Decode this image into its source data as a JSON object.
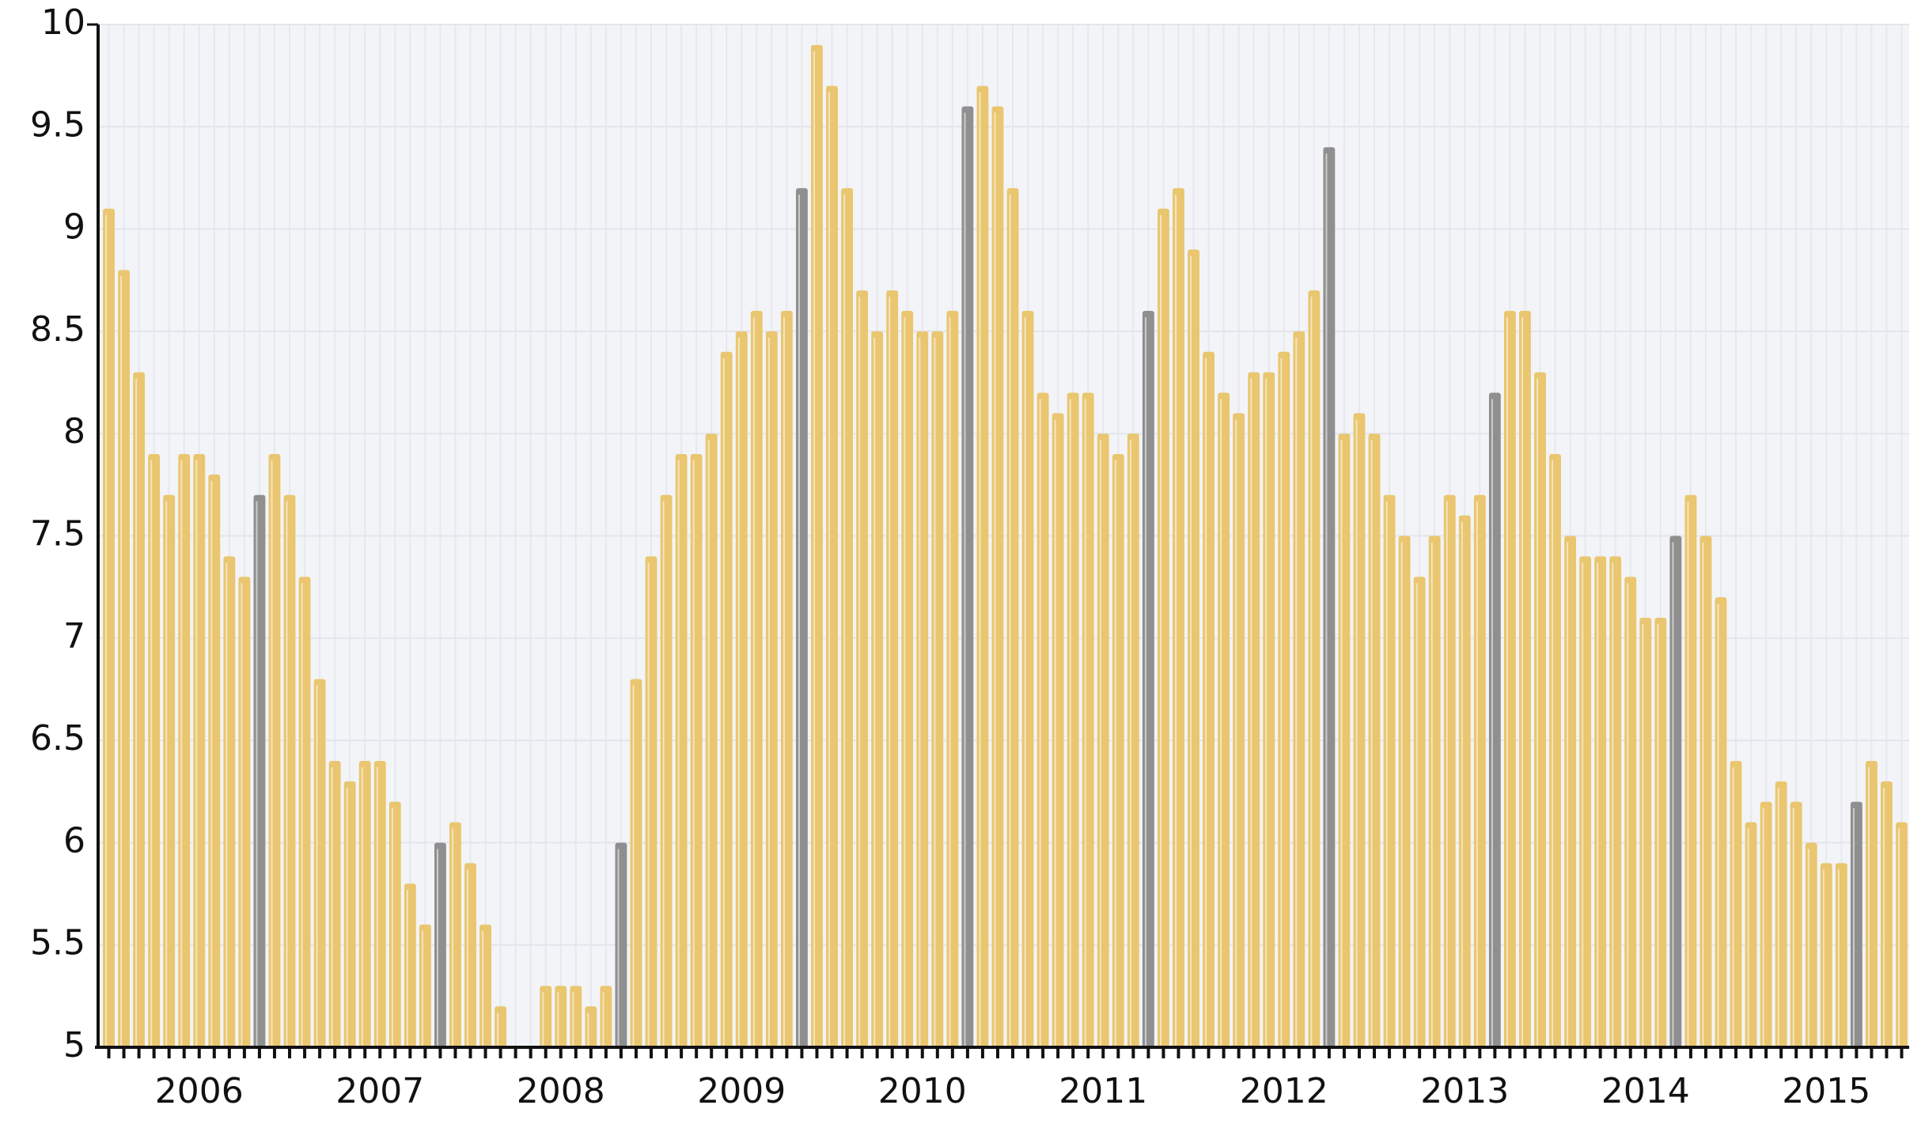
{
  "chart_data": {
    "type": "bar",
    "categories": [
      null,
      null,
      null,
      null,
      null,
      null,
      "2006",
      null,
      null,
      null,
      null,
      null,
      null,
      null,
      null,
      null,
      null,
      null,
      "2007",
      null,
      null,
      null,
      null,
      null,
      null,
      null,
      null,
      null,
      null,
      null,
      "2008",
      null,
      null,
      null,
      null,
      null,
      null,
      null,
      null,
      null,
      null,
      null,
      "2009",
      null,
      null,
      null,
      null,
      null,
      null,
      null,
      null,
      null,
      null,
      null,
      "2010",
      null,
      null,
      null,
      null,
      null,
      null,
      null,
      null,
      null,
      null,
      null,
      "2011",
      null,
      null,
      null,
      null,
      null,
      null,
      null,
      null,
      null,
      null,
      null,
      "2012",
      null,
      null,
      null,
      null,
      null,
      null,
      null,
      null,
      null,
      null,
      null,
      "2013",
      null,
      null,
      null,
      null,
      null,
      null,
      null,
      null,
      null,
      null,
      null,
      "2014",
      null,
      null,
      null,
      null,
      null,
      null,
      null,
      null,
      null,
      null,
      null,
      "2015",
      null,
      null,
      null,
      null,
      null
    ],
    "values": [
      9.1,
      8.8,
      8.3,
      7.9,
      7.7,
      7.9,
      7.9,
      7.8,
      7.4,
      7.3,
      7.7,
      7.9,
      7.7,
      7.3,
      6.8,
      6.4,
      6.3,
      6.4,
      6.4,
      6.2,
      5.8,
      5.6,
      6.0,
      6.1,
      5.9,
      5.6,
      5.2,
      null,
      null,
      5.3,
      5.3,
      5.3,
      5.2,
      5.3,
      6.0,
      6.8,
      7.4,
      7.7,
      7.9,
      7.9,
      8.0,
      8.4,
      8.5,
      8.6,
      8.5,
      8.6,
      9.2,
      9.9,
      9.7,
      9.2,
      8.7,
      8.5,
      8.7,
      8.6,
      8.5,
      8.5,
      8.6,
      9.6,
      9.7,
      9.6,
      9.2,
      8.6,
      8.2,
      8.1,
      8.2,
      8.2,
      8.0,
      7.9,
      8.0,
      8.6,
      9.1,
      9.2,
      8.9,
      8.4,
      8.2,
      8.1,
      8.3,
      8.3,
      8.4,
      8.5,
      8.7,
      9.4,
      8.0,
      8.1,
      8.0,
      7.7,
      7.5,
      7.3,
      7.5,
      7.7,
      7.6,
      7.7,
      8.2,
      8.6,
      8.6,
      8.3,
      7.9,
      7.5,
      7.4,
      7.4,
      7.4,
      7.3,
      7.1,
      7.1,
      7.5,
      7.7,
      7.5,
      7.2,
      6.4,
      6.1,
      6.2,
      6.3,
      6.2,
      6.0,
      5.9,
      5.9,
      6.2,
      6.4,
      6.3,
      6.1
    ],
    "color": "#e9c66f",
    "highlight_color": "#8f8f8f",
    "highlight": [
      10,
      22,
      34,
      46,
      57,
      69,
      81,
      92,
      104,
      116
    ],
    "ylim": [
      5,
      10
    ],
    "yticks": [
      5,
      5.5,
      6,
      6.5,
      7,
      7.5,
      8,
      8.5,
      9,
      9.5,
      10
    ],
    "grid": true
  }
}
